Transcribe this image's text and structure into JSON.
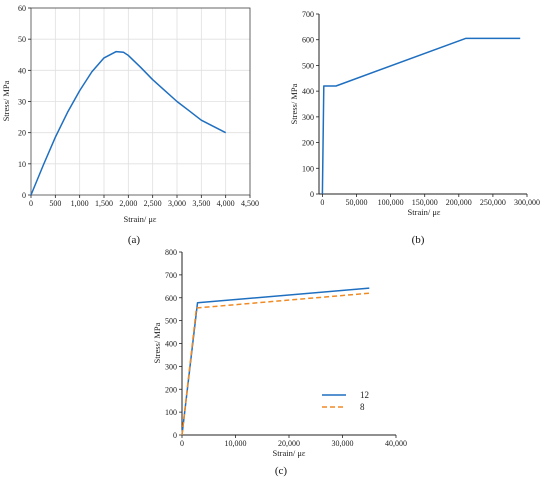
{
  "chart_data": [
    {
      "type": "line",
      "caption": "(a)",
      "xlabel": "Strain/ με",
      "ylabel": "Stress/ MPa",
      "xlim": [
        0,
        4500
      ],
      "ylim": [
        0,
        60
      ],
      "xticks": [
        0,
        500,
        1000,
        1500,
        2000,
        2500,
        3000,
        3500,
        4000,
        4500
      ],
      "xtick_labels": [
        "0",
        "500",
        "1,000",
        "1,500",
        "2,000",
        "2,500",
        "3,000",
        "3,500",
        "4,000",
        "4,500"
      ],
      "yticks": [
        0,
        10,
        20,
        30,
        40,
        50,
        60
      ],
      "ytick_labels": [
        "0",
        "10",
        "20",
        "30",
        "40",
        "50",
        "60"
      ],
      "grid": true,
      "series": [
        {
          "color": "#1f6fc1",
          "dash": "solid",
          "x": [
            0,
            250,
            500,
            750,
            1000,
            1250,
            1500,
            1750,
            1900,
            2000,
            2250,
            2500,
            2750,
            3000,
            3250,
            3500,
            3750,
            4000
          ],
          "y": [
            0,
            9.5,
            18.5,
            26.5,
            33.5,
            39.5,
            44,
            46,
            45.8,
            44.8,
            41,
            37,
            33.5,
            30,
            27,
            24,
            22,
            20
          ]
        }
      ]
    },
    {
      "type": "line",
      "caption": "(b)",
      "xlabel": "Strain/ με",
      "ylabel": "Stress/ MPa",
      "xlim": [
        -5000,
        300000
      ],
      "ylim": [
        0,
        700
      ],
      "xticks": [
        0,
        50000,
        100000,
        150000,
        200000,
        250000,
        300000
      ],
      "xtick_labels": [
        "0",
        "50,000",
        "100,000",
        "150,000",
        "200,000",
        "250,000",
        "300,000"
      ],
      "yticks": [
        0,
        100,
        200,
        300,
        400,
        500,
        600,
        700
      ],
      "ytick_labels": [
        "0",
        "100",
        "200",
        "300",
        "400",
        "500",
        "600",
        "700"
      ],
      "grid": false,
      "series": [
        {
          "color": "#1f6fc1",
          "dash": "solid",
          "x": [
            0,
            2000,
            3500,
            20000,
            210000,
            290000
          ],
          "y": [
            0,
            420,
            420,
            420,
            605,
            605
          ]
        }
      ]
    },
    {
      "type": "line",
      "caption": "(c)",
      "xlabel": "Strain/ με",
      "ylabel": "Stress/ MPa",
      "xlim": [
        0,
        40000
      ],
      "ylim": [
        0,
        800
      ],
      "xticks": [
        0,
        10000,
        20000,
        30000,
        40000
      ],
      "xtick_labels": [
        "0",
        "10,000",
        "20,000",
        "30,000",
        "40,000"
      ],
      "yticks": [
        0,
        100,
        200,
        300,
        400,
        500,
        600,
        700,
        800
      ],
      "ytick_labels": [
        "0",
        "100",
        "200",
        "300",
        "400",
        "500",
        "600",
        "700",
        "800"
      ],
      "grid": false,
      "legend_position": "bottom-right",
      "series": [
        {
          "name": "12",
          "color": "#1f6fc1",
          "dash": "solid",
          "x": [
            0,
            2900,
            35000
          ],
          "y": [
            0,
            578,
            642
          ]
        },
        {
          "name": "8",
          "color": "#f08a24",
          "dash": "dashed",
          "x": [
            0,
            2700,
            35000
          ],
          "y": [
            0,
            555,
            620
          ]
        }
      ]
    }
  ]
}
